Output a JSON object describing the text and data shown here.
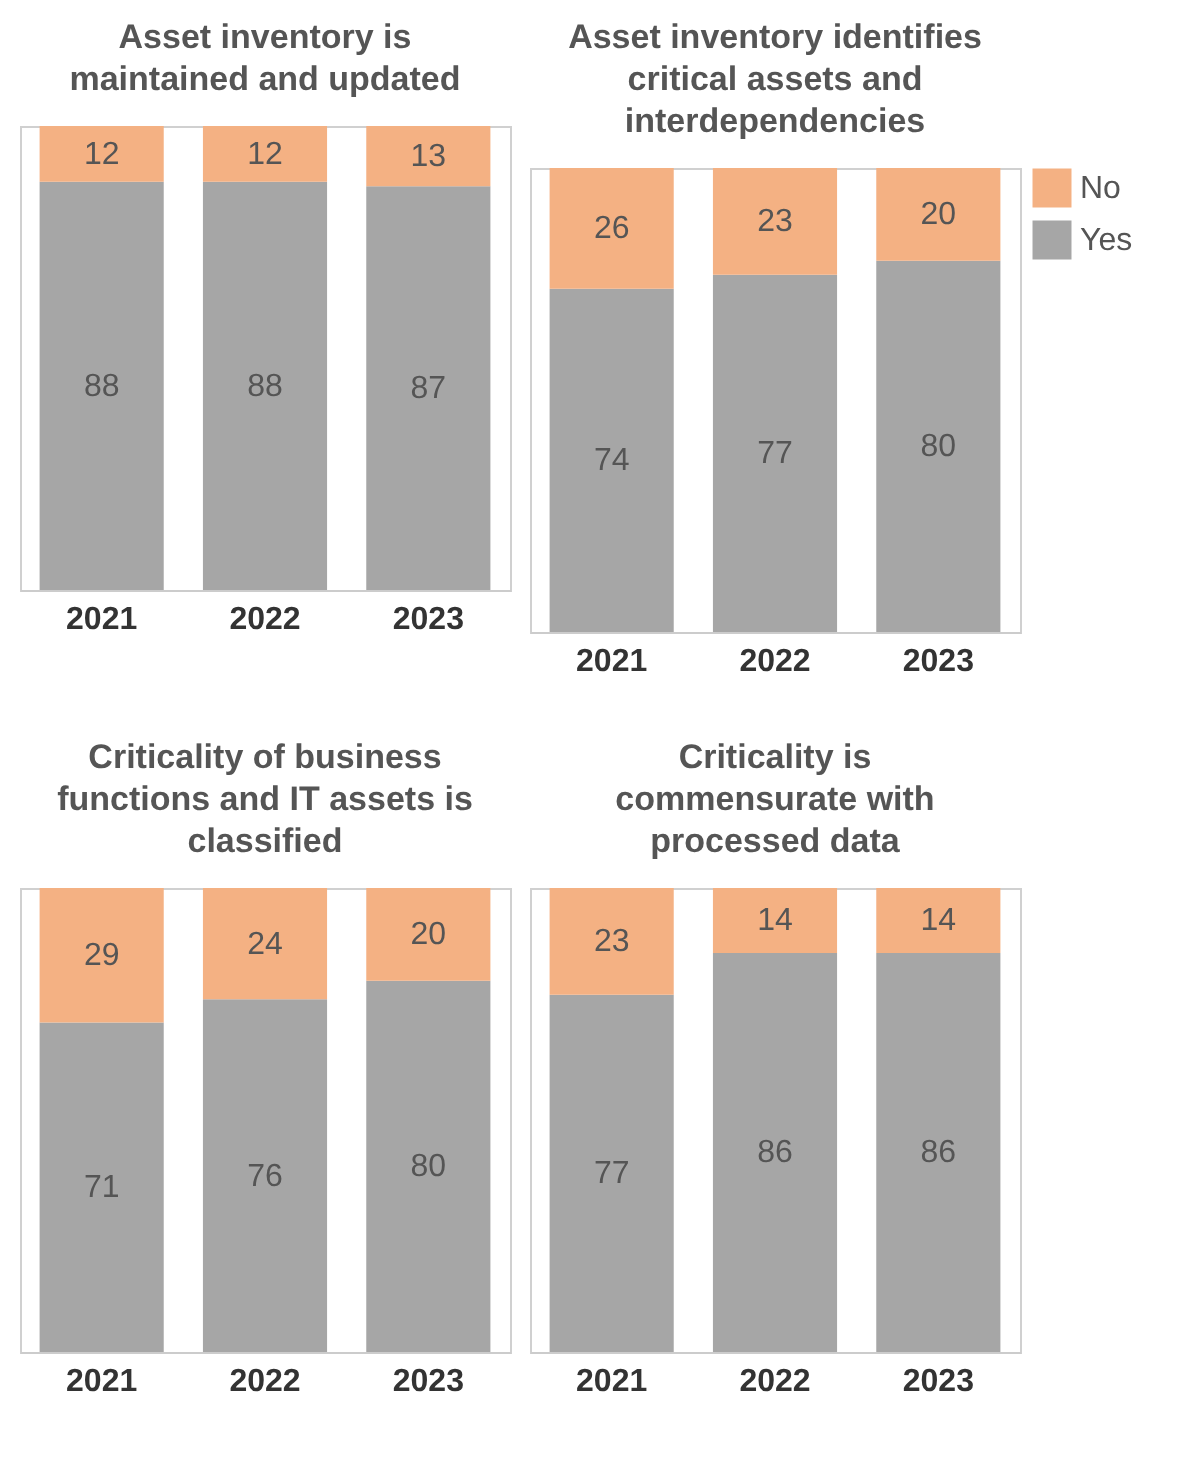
{
  "chart_data": [
    {
      "type": "bar",
      "title": "Asset inventory is\nmaintained and updated",
      "categories": [
        "2021",
        "2022",
        "2023"
      ],
      "stacked": true,
      "data_labels": true,
      "series": [
        {
          "color": "#a6a6a6",
          "values": [
            88,
            88,
            87
          ]
        },
        {
          "color": "#f4b183",
          "values": [
            12,
            12,
            13
          ]
        }
      ]
    },
    {
      "type": "bar",
      "title": "Asset inventory identifies\ncritical assets and\ninterdependencies",
      "categories": [
        "2021",
        "2022",
        "2023"
      ],
      "stacked": true,
      "data_labels": true,
      "legend": "right",
      "series": [
        {
          "name": "Yes",
          "color": "#a6a6a6",
          "values": [
            74,
            77,
            80
          ]
        },
        {
          "name": "No",
          "color": "#f4b183",
          "values": [
            26,
            23,
            20
          ]
        }
      ]
    },
    {
      "type": "bar",
      "title": "Criticality of business\nfunctions and IT assets is\nclassified",
      "categories": [
        "2021",
        "2022",
        "2023"
      ],
      "stacked": true,
      "data_labels": true,
      "series": [
        {
          "color": "#a6a6a6",
          "values": [
            71,
            76,
            80
          ]
        },
        {
          "color": "#f4b183",
          "values": [
            29,
            24,
            20
          ]
        }
      ]
    },
    {
      "type": "bar",
      "title": "Criticality is\ncommensurate with\nprocessed data",
      "categories": [
        "2021",
        "2022",
        "2023"
      ],
      "stacked": true,
      "data_labels": true,
      "series": [
        {
          "color": "#a6a6a6",
          "values": [
            77,
            86,
            86
          ]
        },
        {
          "color": "#f4b183",
          "values": [
            23,
            14,
            14
          ]
        }
      ]
    }
  ]
}
